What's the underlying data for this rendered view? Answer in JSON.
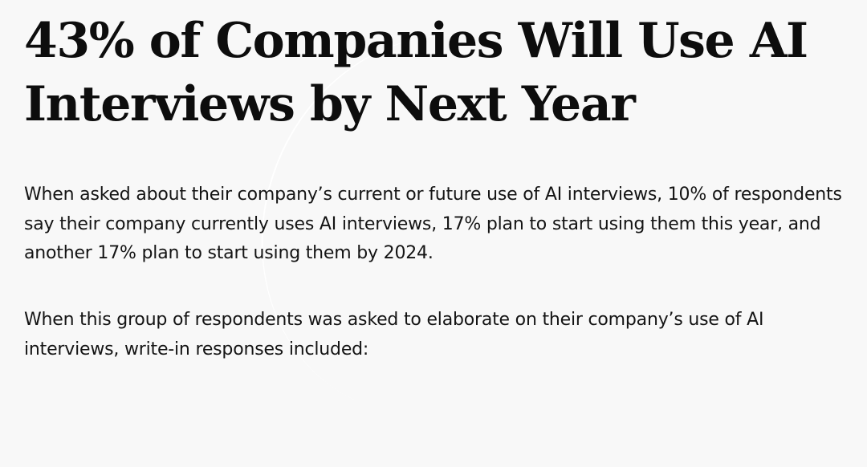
{
  "article": {
    "title": "43% of Companies Will Use AI Interviews by Next Year",
    "paragraphs": [
      "When asked about their company’s current or future use of AI interviews, 10% of respondents say their company currently uses AI interviews, 17% plan to start using them this year, and another 17% plan to start using them by 2024.",
      "When this group of respondents was asked to elaborate on their company’s use of AI interviews, write-in responses included:"
    ]
  }
}
